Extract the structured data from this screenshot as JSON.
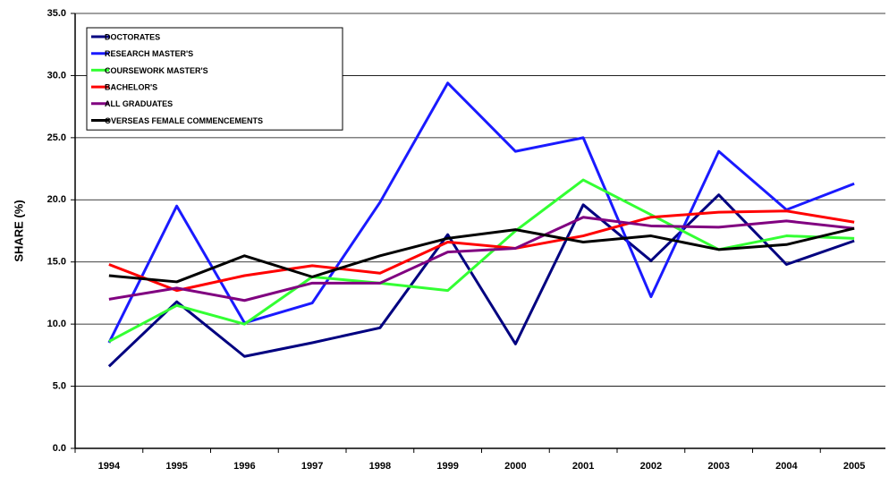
{
  "chart_data": {
    "type": "line",
    "y_label": "SHARE (%)",
    "categories": [
      "1994",
      "1995",
      "1996",
      "1997",
      "1998",
      "1999",
      "2000",
      "2001",
      "2002",
      "2003",
      "2004",
      "2005"
    ],
    "series": [
      {
        "name": "DOCTORATES",
        "color": "#000080",
        "values": [
          6.6,
          11.8,
          7.4,
          8.5,
          9.7,
          17.2,
          8.4,
          19.6,
          15.1,
          20.4,
          14.8,
          16.7
        ]
      },
      {
        "name": "RESEARCH MASTER'S",
        "color": "#1a1aff",
        "values": [
          8.5,
          19.5,
          10.1,
          11.7,
          19.8,
          29.4,
          23.9,
          25.0,
          12.2,
          23.9,
          19.2,
          21.3
        ]
      },
      {
        "name": "COURSEWORK MASTER'S",
        "color": "#33ff33",
        "values": [
          8.6,
          11.5,
          10.0,
          13.8,
          13.3,
          12.7,
          17.5,
          21.6,
          18.8,
          16.0,
          17.1,
          16.9
        ]
      },
      {
        "name": "BACHELOR'S",
        "color": "#ff0000",
        "values": [
          14.8,
          12.7,
          13.9,
          14.7,
          14.1,
          16.6,
          16.1,
          17.1,
          18.6,
          19.0,
          19.1,
          18.2
        ]
      },
      {
        "name": "ALL GRADUATES",
        "color": "#800080",
        "values": [
          12.0,
          12.9,
          11.9,
          13.3,
          13.3,
          15.8,
          16.1,
          18.6,
          17.9,
          17.8,
          18.3,
          17.7
        ]
      },
      {
        "name": "OVERSEAS FEMALE COMMENCEMENTS",
        "color": "#000000",
        "values": [
          13.9,
          13.4,
          15.5,
          13.8,
          15.5,
          16.9,
          17.6,
          16.6,
          17.1,
          16.0,
          16.4,
          17.7
        ]
      }
    ],
    "ylim": [
      0,
      35
    ],
    "yticks": [
      {
        "value": 0,
        "label": "0.0"
      },
      {
        "value": 5,
        "label": "5.0"
      },
      {
        "value": 10,
        "label": "10.0"
      },
      {
        "value": 15,
        "label": "15.0"
      },
      {
        "value": 20,
        "label": "20.0"
      },
      {
        "value": 25,
        "label": "25.0"
      },
      {
        "value": 30,
        "label": "30.0"
      },
      {
        "value": 35,
        "label": "35.0"
      }
    ],
    "grid": true,
    "legend_position": "upper left"
  }
}
